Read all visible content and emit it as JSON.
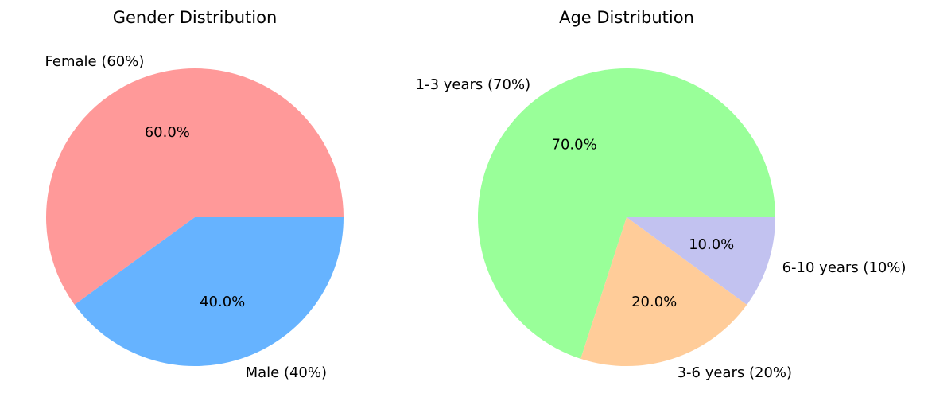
{
  "chart_data": [
    {
      "type": "pie",
      "title": "Gender Distribution",
      "labels": [
        "Female (60%)",
        "Male (40%)"
      ],
      "values": [
        60,
        40
      ],
      "autopct": [
        "60.0%",
        "40.0%"
      ],
      "colors": [
        "#ff9999",
        "#66b3ff"
      ],
      "start_angle": 0,
      "direction": "counterclockwise"
    },
    {
      "type": "pie",
      "title": "Age Distribution",
      "labels": [
        "1-3 years (70%)",
        "3-6 years (20%)",
        "6-10 years (10%)"
      ],
      "values": [
        70,
        20,
        10
      ],
      "autopct": [
        "70.0%",
        "20.0%",
        "10.0%"
      ],
      "colors": [
        "#99ff99",
        "#ffcc99",
        "#c2c2f0"
      ],
      "start_angle": 0,
      "direction": "counterclockwise"
    }
  ]
}
